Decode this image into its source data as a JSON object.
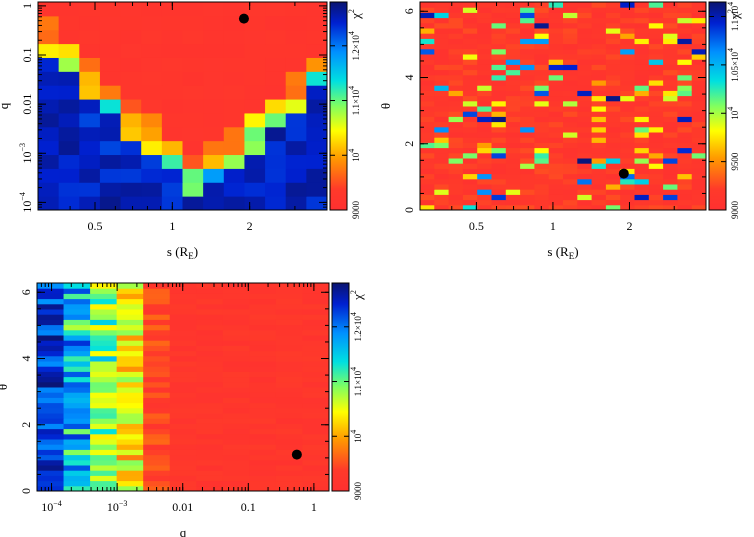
{
  "chart_data": [
    {
      "id": "s_q",
      "type": "heatmap",
      "xlabel": "s (R",
      "xlabel_sub": "E",
      "xlabel_close": ")",
      "ylabel": "q",
      "xscale": "log",
      "yscale": "log",
      "xlim": [
        0.3,
        4.0
      ],
      "ylim": [
        7e-05,
        1.2
      ],
      "xticks": [
        {
          "v": 0.5,
          "label": "0.5"
        },
        {
          "v": 1,
          "label": "1"
        },
        {
          "v": 2,
          "label": "2"
        }
      ],
      "yticks": [
        {
          "v": 0.0001,
          "label": "10",
          "exp": "−4"
        },
        {
          "v": 0.001,
          "label": "10",
          "exp": "−3"
        },
        {
          "v": 0.01,
          "label": "0.01"
        },
        {
          "v": 0.1,
          "label": "0.1"
        },
        {
          "v": 1,
          "label": "1"
        }
      ],
      "grid": false,
      "best_fit": {
        "x": 1.9,
        "y": 0.55
      },
      "colorbar": {
        "label": "χ",
        "label_sup": "2",
        "min": 9000,
        "max": 12800,
        "ticks": [
          {
            "v": 9000,
            "label": "9000"
          },
          {
            "v": 10000,
            "label": "10",
            "exp": "4"
          },
          {
            "v": 11000,
            "label": "1.1×10",
            "exp": "4"
          },
          {
            "v": 12000,
            "label": "1.2×10",
            "exp": "4"
          }
        ]
      }
    },
    {
      "id": "s_theta",
      "type": "heatmap",
      "xlabel": "s (R",
      "xlabel_sub": "E",
      "xlabel_close": ")",
      "ylabel": "θ",
      "xscale": "log",
      "yscale": "linear",
      "xlim": [
        0.3,
        4.0
      ],
      "ylim": [
        0,
        6.28
      ],
      "xticks": [
        {
          "v": 0.5,
          "label": "0.5"
        },
        {
          "v": 1,
          "label": "1"
        },
        {
          "v": 2,
          "label": "2"
        }
      ],
      "yticks": [
        {
          "v": 0,
          "label": "0"
        },
        {
          "v": 2,
          "label": "2"
        },
        {
          "v": 4,
          "label": "4"
        },
        {
          "v": 6,
          "label": "6"
        }
      ],
      "grid": false,
      "best_fit": {
        "x": 1.9,
        "y": 1.1
      },
      "colorbar": {
        "label": "χ",
        "label_sup": "2",
        "min": 9000,
        "max": 11150,
        "ticks": [
          {
            "v": 9000,
            "label": "9000"
          },
          {
            "v": 9500,
            "label": "9500"
          },
          {
            "v": 10000,
            "label": "10",
            "exp": "4"
          },
          {
            "v": 10500,
            "label": "1.05×10",
            "exp": "4"
          },
          {
            "v": 11000,
            "label": "1.1×10",
            "exp": "4"
          }
        ]
      }
    },
    {
      "id": "q_theta",
      "type": "heatmap",
      "xlabel": "q",
      "ylabel": "θ",
      "xscale": "log",
      "yscale": "linear",
      "xlim": [
        6e-05,
        1.7
      ],
      "ylim": [
        0,
        6.28
      ],
      "xticks": [
        {
          "v": 0.0001,
          "label": "10",
          "exp": "−4"
        },
        {
          "v": 0.001,
          "label": "10",
          "exp": "−3"
        },
        {
          "v": 0.01,
          "label": "0.01"
        },
        {
          "v": 0.1,
          "label": "0.1"
        },
        {
          "v": 1,
          "label": "1"
        }
      ],
      "yticks": [
        {
          "v": 0,
          "label": "0"
        },
        {
          "v": 2,
          "label": "2"
        },
        {
          "v": 4,
          "label": "4"
        },
        {
          "v": 6,
          "label": "6"
        }
      ],
      "grid": false,
      "best_fit": {
        "x": 0.55,
        "y": 1.1
      },
      "colorbar": {
        "label": "χ",
        "label_sup": "2",
        "min": 9000,
        "max": 12800,
        "ticks": [
          {
            "v": 9000,
            "label": "9000"
          },
          {
            "v": 10000,
            "label": "10",
            "exp": "4"
          },
          {
            "v": 11000,
            "label": "1.1×10",
            "exp": "4"
          },
          {
            "v": 12000,
            "label": "1.2×10",
            "exp": "4"
          }
        ]
      }
    }
  ]
}
